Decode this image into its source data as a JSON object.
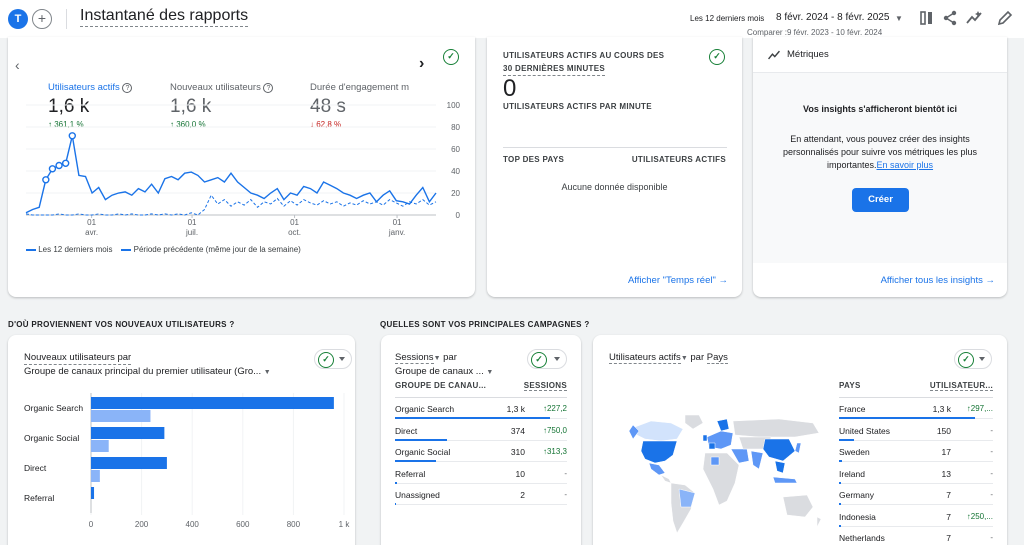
{
  "header": {
    "avatar_letter": "T",
    "title": "Instantané des rapports",
    "date_label": "Les 12 derniers mois",
    "date_range": "8 févr. 2024 - 8 févr. 2025",
    "compare_range": "Comparer :9 févr. 2023 - 10 févr. 2024"
  },
  "metrics": {
    "tabs": [
      {
        "label": "Utilisateurs actifs",
        "value": "1,6 k",
        "change": "361,1 %",
        "direction": "up"
      },
      {
        "label": "Nouveaux utilisateurs",
        "value": "1,6 k",
        "change": "360,0 %",
        "direction": "up"
      },
      {
        "label": "Durée d'engagement m",
        "value": "48 s",
        "change": "62,8 %",
        "direction": "down"
      }
    ],
    "legend_current": "Les 12 derniers mois",
    "legend_previous": "Période précédente (même jour de la semaine)"
  },
  "chart_data": [
    {
      "type": "line",
      "y_ticks": [
        100,
        80,
        60,
        40,
        20,
        0
      ],
      "ylim": [
        0,
        100
      ],
      "x_ticks": [
        {
          "line1": "01",
          "line2": "avr."
        },
        {
          "line1": "01",
          "line2": "juil."
        },
        {
          "line1": "01",
          "line2": "oct."
        },
        {
          "line1": "01",
          "line2": "janv."
        }
      ],
      "series": [
        {
          "name": "Les 12 derniers mois",
          "color": "#1a73e8",
          "style": "solid",
          "values": [
            2,
            5,
            7,
            32,
            42,
            45,
            47,
            72,
            36,
            35,
            20,
            25,
            14,
            18,
            20,
            21,
            18,
            24,
            21,
            28,
            20,
            33,
            35,
            32,
            38,
            39,
            36,
            30,
            32,
            34,
            30,
            38,
            30,
            25,
            20,
            18,
            15,
            20,
            24,
            14,
            20,
            18,
            26,
            24,
            20,
            30,
            27,
            24,
            20,
            18,
            15,
            18,
            20,
            12,
            18,
            22,
            13,
            12,
            10,
            18,
            25,
            12,
            20
          ]
        },
        {
          "name": "Période précédente (même jour de la semaine)",
          "color": "#1a73e8",
          "style": "dashed",
          "values": [
            1,
            0,
            0,
            0,
            0,
            1,
            0,
            0,
            1,
            0,
            0,
            1,
            0,
            0,
            1,
            0,
            1,
            0,
            0,
            1,
            0,
            1,
            0,
            1,
            0,
            2,
            0,
            5,
            18,
            10,
            14,
            8,
            12,
            9,
            14,
            7,
            12,
            10,
            15,
            8,
            13,
            9,
            14,
            11,
            9,
            13,
            10,
            12,
            8,
            11,
            9,
            13,
            10,
            12,
            9,
            14,
            11,
            8,
            12,
            10,
            14,
            9,
            12
          ]
        }
      ]
    },
    {
      "type": "bar",
      "categories": [
        "Organic Search",
        "Organic Social",
        "Direct",
        "Referral"
      ],
      "x_ticks": [
        "0",
        "200",
        "400",
        "600",
        "800",
        "1 k"
      ],
      "xlim": [
        0,
        1000
      ],
      "series": [
        {
          "name": "current",
          "color": "#1a73e8",
          "values": [
            960,
            290,
            300,
            12
          ]
        },
        {
          "name": "previous",
          "color": "#8ab4f8",
          "values": [
            235,
            70,
            35,
            0
          ]
        }
      ]
    }
  ],
  "realtime": {
    "title_line1": "UTILISATEURS ACTIFS AU COURS DES",
    "title_line2": "30 DERNIÈRES MINUTES",
    "value": "0",
    "per_minute": "UTILISATEURS ACTIFS PAR MINUTE",
    "col_country": "TOP DES PAYS",
    "col_users": "UTILISATEURS ACTIFS",
    "empty": "Aucune donnée disponible",
    "link": "Afficher \"Temps réel\""
  },
  "insights": {
    "title": "Métriques",
    "heading": "Vos insights s'afficheront bientôt ici",
    "body_line1": "En attendant, vous pouvez créer des insights",
    "body_line2": "personnalisés pour suivre vos métriques les plus",
    "body_line3": "importantes.",
    "learn_more": "En savoir plus",
    "create_button": "Créer",
    "link": "Afficher tous les insights"
  },
  "sections": {
    "new_users_heading": "D'OÙ PROVIENNENT VOS NOUVEAUX UTILISATEURS ?",
    "campaigns_heading": "QUELLES SONT VOS PRINCIPALES CAMPAGNES ?"
  },
  "new_users_card": {
    "title_line1": "Nouveaux utilisateurs par",
    "title_line2": "Groupe de canaux principal du premier utilisateur (Gro..."
  },
  "sessions_card": {
    "title_line1a": "Sessions",
    "title_line1b": "par",
    "title_line2": "Groupe de canaux ...",
    "col_group": "GROUPE DE CANAU...",
    "col_sessions": "SESSIONS",
    "rows": [
      {
        "name": "Organic Search",
        "value": "1,3 k",
        "change": "↑227,2",
        "bar": 0.9
      },
      {
        "name": "Direct",
        "value": "374",
        "change": "↑750,0",
        "bar": 0.3
      },
      {
        "name": "Organic Social",
        "value": "310",
        "change": "↑313,3",
        "bar": 0.24
      },
      {
        "name": "Referral",
        "value": "10",
        "change": "-",
        "bar": 0.01
      },
      {
        "name": "Unassigned",
        "value": "2",
        "change": "-",
        "bar": 0.005
      }
    ]
  },
  "country_card": {
    "title_a": "Utilisateurs actifs",
    "title_b": "par",
    "title_c": "Pays",
    "col_country": "PAYS",
    "col_users": "UTILISATEUR...",
    "rows": [
      {
        "name": "France",
        "value": "1,3 k",
        "change": "↑297,...",
        "bar": 0.88
      },
      {
        "name": "United States",
        "value": "150",
        "change": "-",
        "bar": 0.1
      },
      {
        "name": "Sweden",
        "value": "17",
        "change": "-",
        "bar": 0.02
      },
      {
        "name": "Ireland",
        "value": "13",
        "change": "-",
        "bar": 0.015
      },
      {
        "name": "Germany",
        "value": "7",
        "change": "-",
        "bar": 0.01
      },
      {
        "name": "Indonesia",
        "value": "7",
        "change": "↑250,...",
        "bar": 0.01
      },
      {
        "name": "Netherlands",
        "value": "7",
        "change": "-",
        "bar": 0.01
      }
    ]
  }
}
